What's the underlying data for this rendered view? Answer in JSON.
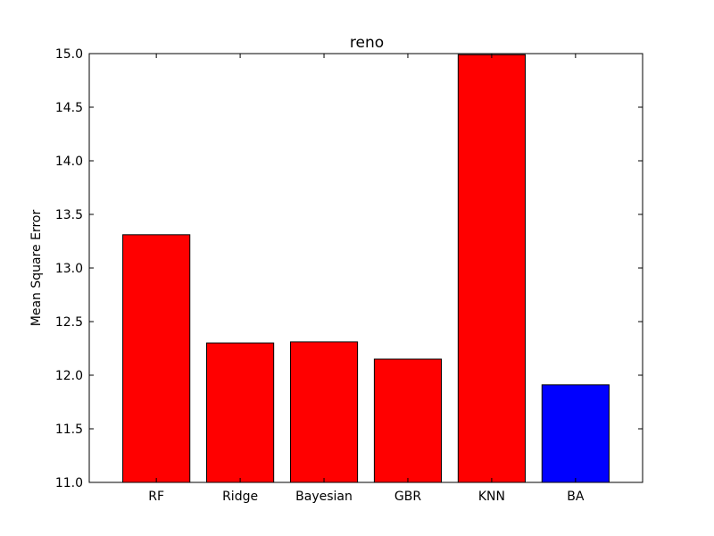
{
  "chart_data": {
    "type": "bar",
    "title": "reno",
    "xlabel": "",
    "ylabel": "Mean Square Error",
    "categories": [
      "RF",
      "Ridge",
      "Bayesian",
      "GBR",
      "KNN",
      "BA"
    ],
    "values": [
      13.31,
      12.3,
      12.31,
      12.15,
      14.99,
      11.91
    ],
    "colors": [
      "#ff0000",
      "#ff0000",
      "#ff0000",
      "#ff0000",
      "#ff0000",
      "#0000ff"
    ],
    "ylim": [
      11.0,
      15.0
    ],
    "yticks": [
      "11.0",
      "11.5",
      "12.0",
      "12.5",
      "13.0",
      "13.5",
      "14.0",
      "14.5",
      "15.0"
    ],
    "grid": false,
    "legend": "none"
  }
}
